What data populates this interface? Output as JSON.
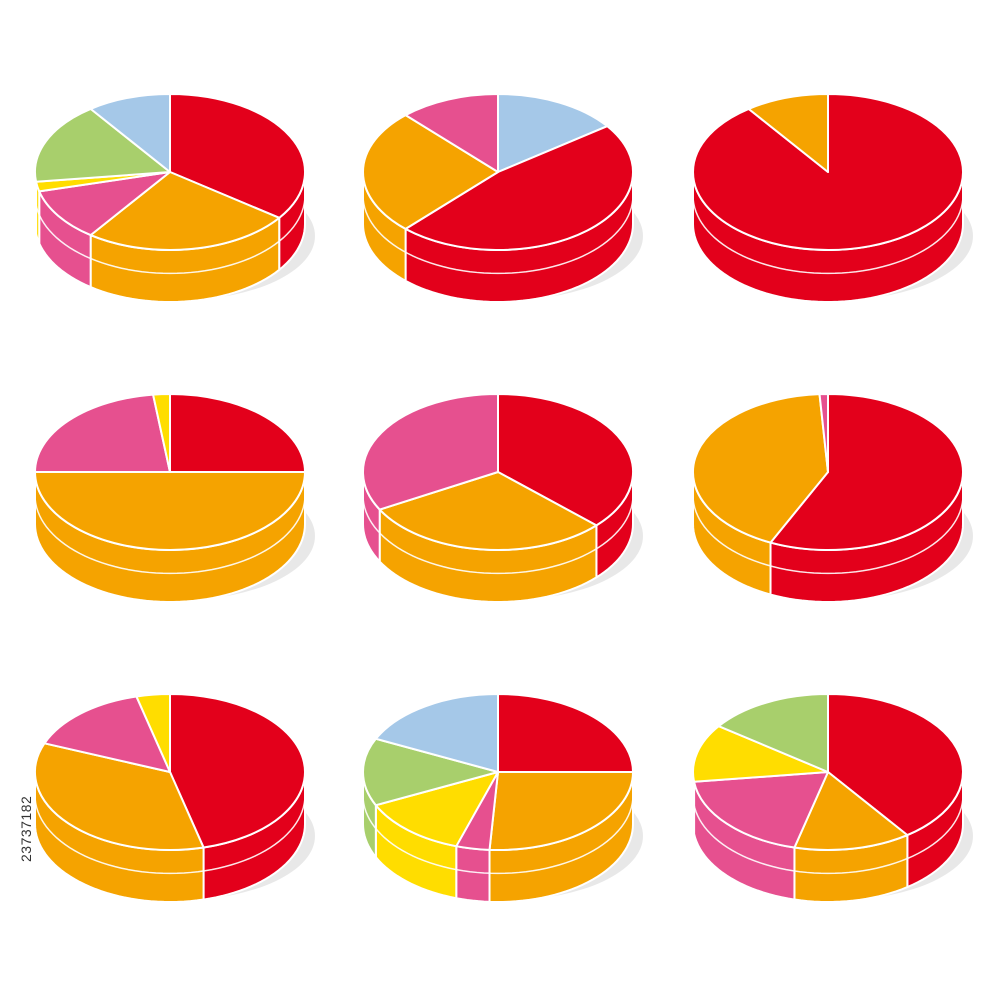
{
  "side_label": "23737182",
  "palette": {
    "red": "#e3001b",
    "orange": "#f5a300",
    "pink": "#e6508f",
    "yellow": "#ffdd00",
    "green": "#a8cf6c",
    "blue": "#a5c8e8",
    "edge": "#ffffff",
    "shadow": "#d8d8d8"
  },
  "chart_data": [
    {
      "type": "pie",
      "id": "pie-1",
      "slices": [
        {
          "value": 35,
          "color": "red"
        },
        {
          "value": 25,
          "color": "orange"
        },
        {
          "value": 11,
          "color": "pink"
        },
        {
          "value": 2,
          "color": "yellow"
        },
        {
          "value": 17,
          "color": "green"
        },
        {
          "value": 10,
          "color": "blue"
        }
      ]
    },
    {
      "type": "pie",
      "id": "pie-2",
      "slices": [
        {
          "value": 15,
          "color": "blue"
        },
        {
          "value": 47,
          "color": "red"
        },
        {
          "value": 26,
          "color": "orange"
        },
        {
          "value": 12,
          "color": "pink"
        }
      ]
    },
    {
      "type": "pie",
      "id": "pie-3",
      "slices": [
        {
          "value": 90,
          "color": "red"
        },
        {
          "value": 10,
          "color": "orange"
        }
      ]
    },
    {
      "type": "pie",
      "id": "pie-4",
      "slices": [
        {
          "value": 25,
          "color": "red"
        },
        {
          "value": 50,
          "color": "orange"
        },
        {
          "value": 23,
          "color": "pink"
        },
        {
          "value": 2,
          "color": "yellow"
        }
      ]
    },
    {
      "type": "pie",
      "id": "pie-5",
      "slices": [
        {
          "value": 37,
          "color": "red"
        },
        {
          "value": 30,
          "color": "orange"
        },
        {
          "value": 33,
          "color": "pink"
        }
      ]
    },
    {
      "type": "pie",
      "id": "pie-6",
      "slices": [
        {
          "value": 57,
          "color": "red"
        },
        {
          "value": 42,
          "color": "orange"
        },
        {
          "value": 1,
          "color": "pink"
        }
      ]
    },
    {
      "type": "pie",
      "id": "pie-7",
      "slices": [
        {
          "value": 46,
          "color": "red"
        },
        {
          "value": 35,
          "color": "orange"
        },
        {
          "value": 15,
          "color": "pink"
        },
        {
          "value": 4,
          "color": "yellow"
        }
      ]
    },
    {
      "type": "pie",
      "id": "pie-8",
      "slices": [
        {
          "value": 25,
          "color": "red"
        },
        {
          "value": 26,
          "color": "orange"
        },
        {
          "value": 4,
          "color": "pink"
        },
        {
          "value": 13,
          "color": "yellow"
        },
        {
          "value": 14,
          "color": "green"
        },
        {
          "value": 18,
          "color": "blue"
        }
      ]
    },
    {
      "type": "pie",
      "id": "pie-9",
      "slices": [
        {
          "value": 40,
          "color": "red"
        },
        {
          "value": 14,
          "color": "orange"
        },
        {
          "value": 19,
          "color": "pink"
        },
        {
          "value": 12,
          "color": "yellow"
        },
        {
          "value": 15,
          "color": "green"
        }
      ]
    }
  ]
}
